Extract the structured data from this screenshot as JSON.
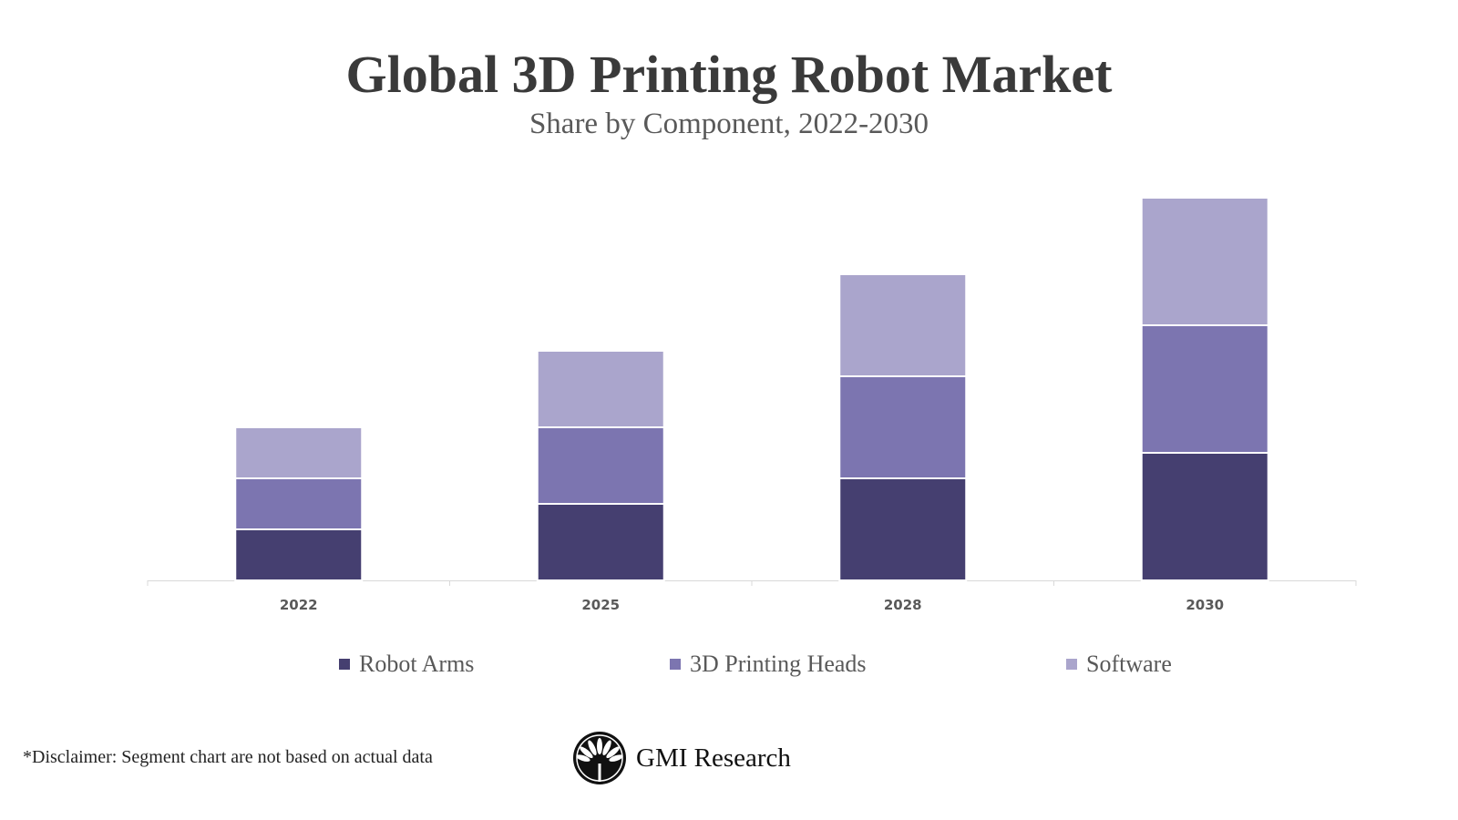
{
  "title": "Global 3D Printing Robot Market",
  "subtitle": "Share by Component, 2022-2030",
  "disclaimer": "*Disclaimer:  Segment chart are not based on actual data",
  "logo_text": "GMI Research",
  "chart_data": {
    "type": "bar",
    "stacked": true,
    "title": "Global 3D Printing Robot Market",
    "subtitle": "Share by Component, 2022-2030",
    "categories": [
      "2022",
      "2025",
      "2028",
      "2030"
    ],
    "series": [
      {
        "name": "Robot Arms",
        "values": [
          2,
          3,
          4,
          5
        ],
        "color": "#453f70"
      },
      {
        "name": "3D Printing Heads",
        "values": [
          2,
          3,
          4,
          5
        ],
        "color": "#7c75b0"
      },
      {
        "name": "Software",
        "values": [
          2,
          3,
          4,
          5
        ],
        "color": "#aaa5cc"
      }
    ],
    "ylim": [
      0,
      15
    ],
    "y_axis_shown": false,
    "grid": false,
    "legend": "bottom"
  }
}
